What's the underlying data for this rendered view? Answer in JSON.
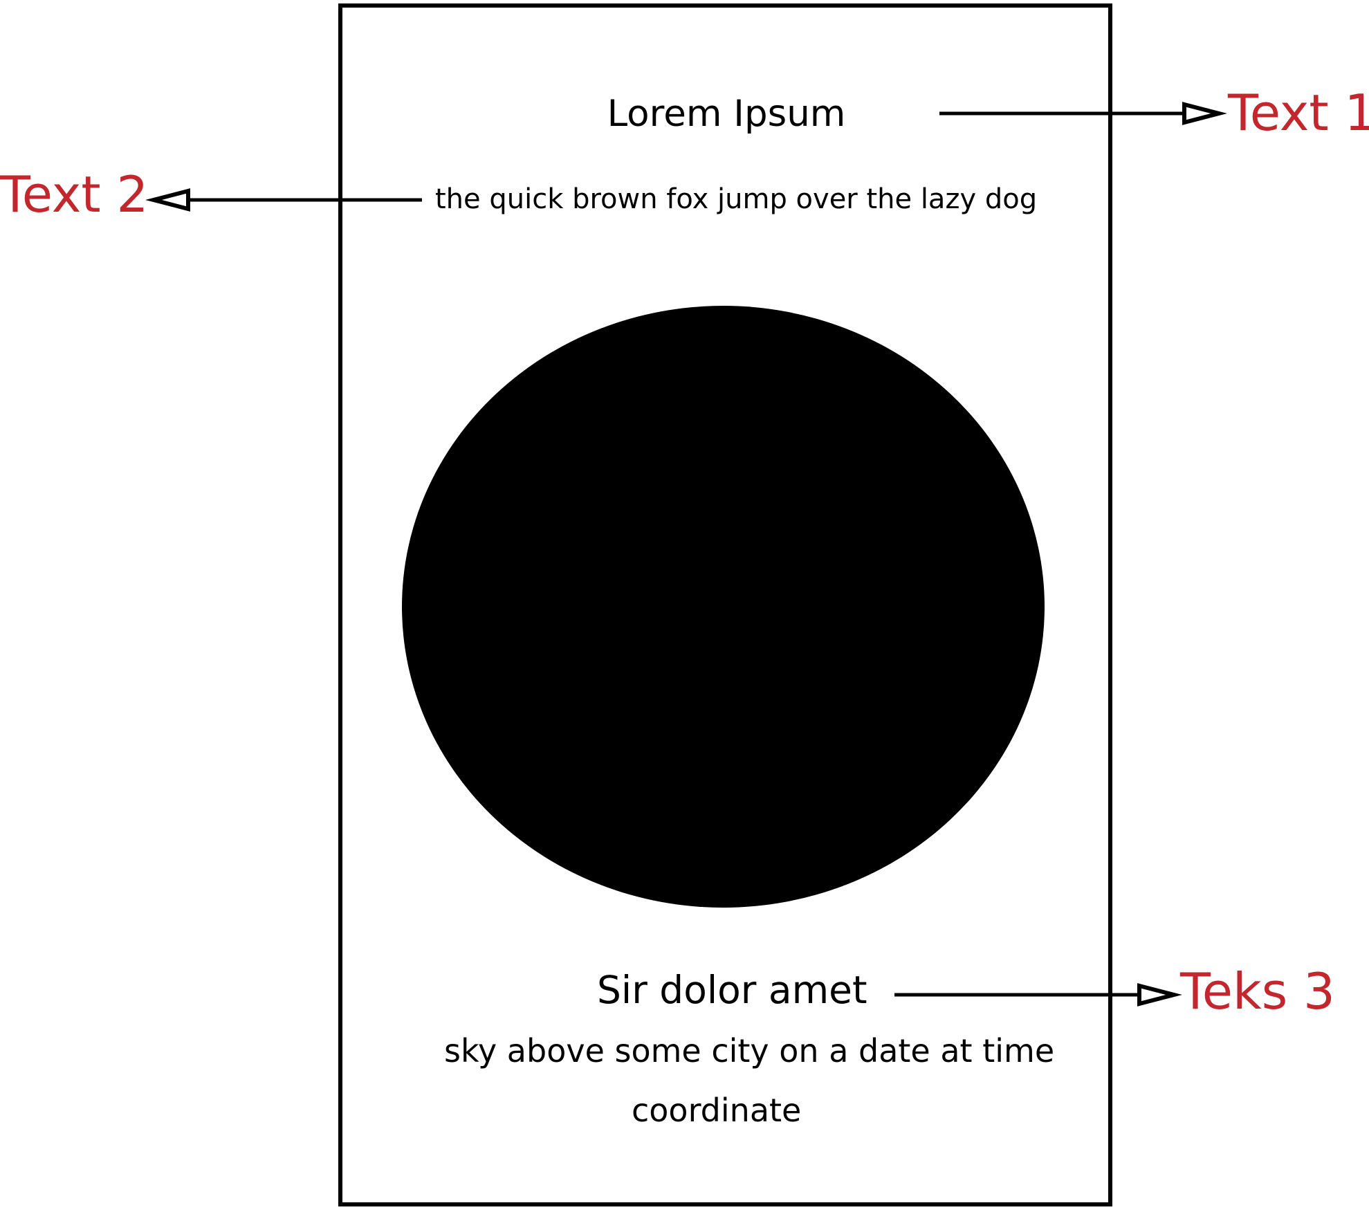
{
  "card": {
    "title": "Lorem Ipsum",
    "tagline": "the quick brown fox jump over the lazy dog",
    "footer_title": "Sir dolor amet",
    "footer_line1": "sky above some city on a date at time",
    "footer_line2": "coordinate"
  },
  "callouts": {
    "text1": "Text 1",
    "text2": "Text 2",
    "text3": "Teks 3"
  },
  "colors": {
    "callout": "#c1272d",
    "ink": "#000000",
    "background": "#ffffff"
  },
  "icons": {
    "circle": "filled-circle",
    "arrow": "hollow-triangle-arrowhead"
  }
}
